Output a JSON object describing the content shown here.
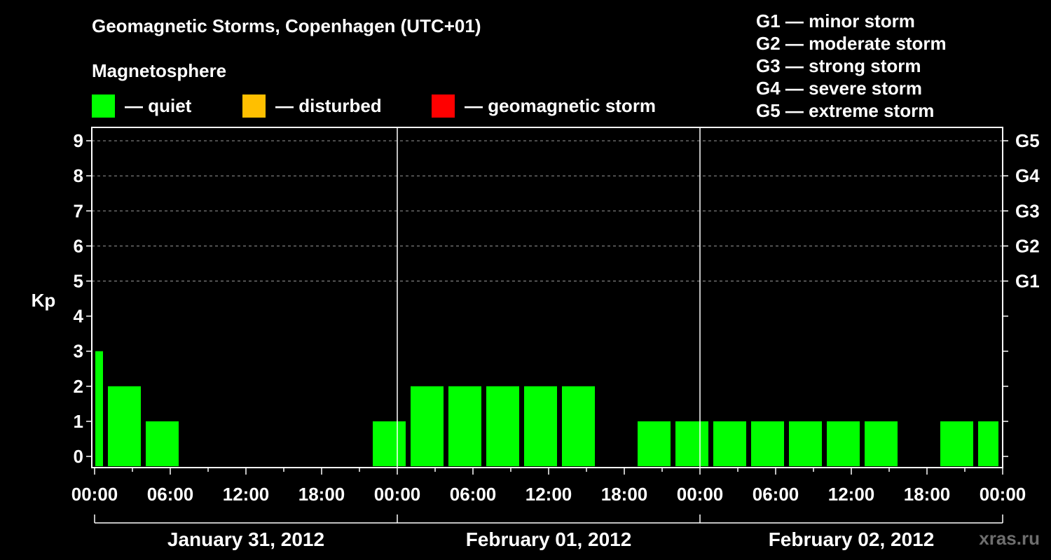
{
  "header": {
    "title": "Geomagnetic Storms, Copenhagen (UTC+01)",
    "subtitle": "Magnetosphere"
  },
  "legend": [
    {
      "label": "— quiet",
      "color": "#00ff00"
    },
    {
      "label": "— disturbed",
      "color": "#ffbf00"
    },
    {
      "label": "— geomagnetic storm",
      "color": "#ff0000"
    }
  ],
  "storm_levels": [
    "G1 — minor storm",
    "G2 — moderate storm",
    "G3 — strong storm",
    "G4 — severe storm",
    "G5 — extreme storm"
  ],
  "watermark": "xras.ru",
  "chart_data": {
    "type": "bar",
    "ylabel": "Kp",
    "ylim": [
      0,
      9
    ],
    "yticks": [
      "0",
      "1",
      "2",
      "3",
      "4",
      "5",
      "6",
      "7",
      "8",
      "9"
    ],
    "right_axis_labels": [
      {
        "kp": 5,
        "label": "G1"
      },
      {
        "kp": 6,
        "label": "G2"
      },
      {
        "kp": 7,
        "label": "G3"
      },
      {
        "kp": 8,
        "label": "G4"
      },
      {
        "kp": 9,
        "label": "G5"
      }
    ],
    "xticks": [
      "00:00",
      "06:00",
      "12:00",
      "18:00",
      "00:00",
      "06:00",
      "12:00",
      "18:00",
      "00:00",
      "06:00",
      "12:00",
      "18:00",
      "00:00"
    ],
    "days": [
      "January 31, 2012",
      "February 01, 2012",
      "February 02, 2012"
    ],
    "bar_color": "#00ff00",
    "grid": "dashed horizontal",
    "series": [
      {
        "values": [
          {
            "start_hour": 0,
            "end_hour": 1,
            "kp": 3
          },
          {
            "start_hour": 1,
            "end_hour": 4,
            "kp": 2
          },
          {
            "start_hour": 4,
            "end_hour": 7,
            "kp": 1
          },
          {
            "start_hour": 7,
            "end_hour": 10,
            "kp": 0
          },
          {
            "start_hour": 10,
            "end_hour": 13,
            "kp": 0
          },
          {
            "start_hour": 13,
            "end_hour": 16,
            "kp": 0
          },
          {
            "start_hour": 16,
            "end_hour": 19,
            "kp": 0
          },
          {
            "start_hour": 19,
            "end_hour": 22,
            "kp": 0
          },
          {
            "start_hour": 22,
            "end_hour": 25,
            "kp": 1
          },
          {
            "start_hour": 25,
            "end_hour": 28,
            "kp": 2
          },
          {
            "start_hour": 28,
            "end_hour": 31,
            "kp": 2
          },
          {
            "start_hour": 31,
            "end_hour": 34,
            "kp": 2
          },
          {
            "start_hour": 34,
            "end_hour": 37,
            "kp": 2
          },
          {
            "start_hour": 37,
            "end_hour": 40,
            "kp": 2
          },
          {
            "start_hour": 40,
            "end_hour": 43,
            "kp": 0
          },
          {
            "start_hour": 43,
            "end_hour": 46,
            "kp": 1
          },
          {
            "start_hour": 46,
            "end_hour": 49,
            "kp": 1
          },
          {
            "start_hour": 49,
            "end_hour": 52,
            "kp": 1
          },
          {
            "start_hour": 52,
            "end_hour": 55,
            "kp": 1
          },
          {
            "start_hour": 55,
            "end_hour": 58,
            "kp": 1
          },
          {
            "start_hour": 58,
            "end_hour": 61,
            "kp": 1
          },
          {
            "start_hour": 61,
            "end_hour": 64,
            "kp": 1
          },
          {
            "start_hour": 64,
            "end_hour": 67,
            "kp": 0
          },
          {
            "start_hour": 67,
            "end_hour": 70,
            "kp": 1
          },
          {
            "start_hour": 70,
            "end_hour": 72,
            "kp": 1
          }
        ]
      }
    ]
  }
}
